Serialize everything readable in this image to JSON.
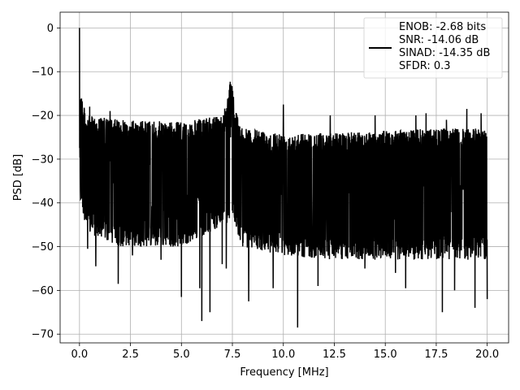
{
  "chart_data": {
    "type": "line",
    "xlabel": "Frequency [MHz]",
    "ylabel": "PSD [dB]",
    "xlim": [
      -0.95,
      21.05
    ],
    "ylim": [
      -72.0,
      3.6
    ],
    "xticks": [
      0.0,
      2.5,
      5.0,
      7.5,
      10.0,
      12.5,
      15.0,
      17.5,
      20.0
    ],
    "xtick_labels": [
      "0.0",
      "2.5",
      "5.0",
      "7.5",
      "10.0",
      "12.5",
      "15.0",
      "17.5",
      "20.0"
    ],
    "yticks": [
      0,
      -10,
      -20,
      -30,
      -40,
      -50,
      -60,
      -70
    ],
    "ytick_labels": [
      "0",
      "−10",
      "−20",
      "−30",
      "−40",
      "−50",
      "−60",
      "−70"
    ],
    "grid": true,
    "legend_position": "top-right",
    "series": [
      {
        "name": "ENOB: -2.68 bits\nSNR: -14.06 dB\nSINAD: -14.35 dB\nSFDR: 0.3",
        "color": "#000000",
        "peak": {
          "x": 0.0,
          "y": 0.0
        },
        "spur": {
          "x": 7.4,
          "y": -12.0
        },
        "upper_envelope": [
          [
            0.0,
            -12
          ],
          [
            0.15,
            -16
          ],
          [
            0.3,
            -20
          ],
          [
            2.0,
            -21
          ],
          [
            5.0,
            -21.5
          ],
          [
            7.0,
            -20
          ],
          [
            7.5,
            -12
          ],
          [
            7.6,
            -18
          ],
          [
            8.0,
            -23
          ],
          [
            10.0,
            -24
          ],
          [
            12.5,
            -24
          ],
          [
            15.0,
            -23.5
          ],
          [
            17.5,
            -23
          ],
          [
            20.0,
            -23
          ]
        ],
        "lower_envelope": [
          [
            0.0,
            -27
          ],
          [
            0.05,
            -40
          ],
          [
            0.4,
            -47
          ],
          [
            2.0,
            -50
          ],
          [
            5.0,
            -50
          ],
          [
            7.5,
            -44
          ],
          [
            8.0,
            -50
          ],
          [
            10.0,
            -52
          ],
          [
            12.5,
            -53
          ],
          [
            15.0,
            -53
          ],
          [
            17.5,
            -53
          ],
          [
            20.0,
            -53
          ]
        ],
        "deep_dips": [
          [
            0.4,
            -50.5
          ],
          [
            0.8,
            -54.5
          ],
          [
            1.9,
            -58.5
          ],
          [
            2.6,
            -52
          ],
          [
            4.0,
            -53
          ],
          [
            5.0,
            -61.5
          ],
          [
            5.9,
            -59.5
          ],
          [
            6.0,
            -67
          ],
          [
            6.4,
            -65
          ],
          [
            7.0,
            -54
          ],
          [
            7.2,
            -55
          ],
          [
            8.3,
            -62.5
          ],
          [
            9.5,
            -59.5
          ],
          [
            10.7,
            -68.5
          ],
          [
            11.7,
            -59
          ],
          [
            12.3,
            -54.5
          ],
          [
            14.0,
            -55
          ],
          [
            15.5,
            -56
          ],
          [
            16.0,
            -59.5
          ],
          [
            17.0,
            -57.5
          ],
          [
            17.8,
            -65
          ],
          [
            18.4,
            -60
          ],
          [
            19.4,
            -64
          ],
          [
            20.0,
            -62
          ]
        ],
        "upper_spikes": [
          [
            0.5,
            -18
          ],
          [
            1.5,
            -19
          ],
          [
            10.0,
            -17.5
          ],
          [
            12.3,
            -20
          ],
          [
            14.5,
            -20
          ],
          [
            16.5,
            -20
          ],
          [
            17.0,
            -19.5
          ],
          [
            18.0,
            -21
          ],
          [
            19.0,
            -18.5
          ],
          [
            19.7,
            -19.5
          ]
        ]
      }
    ]
  }
}
